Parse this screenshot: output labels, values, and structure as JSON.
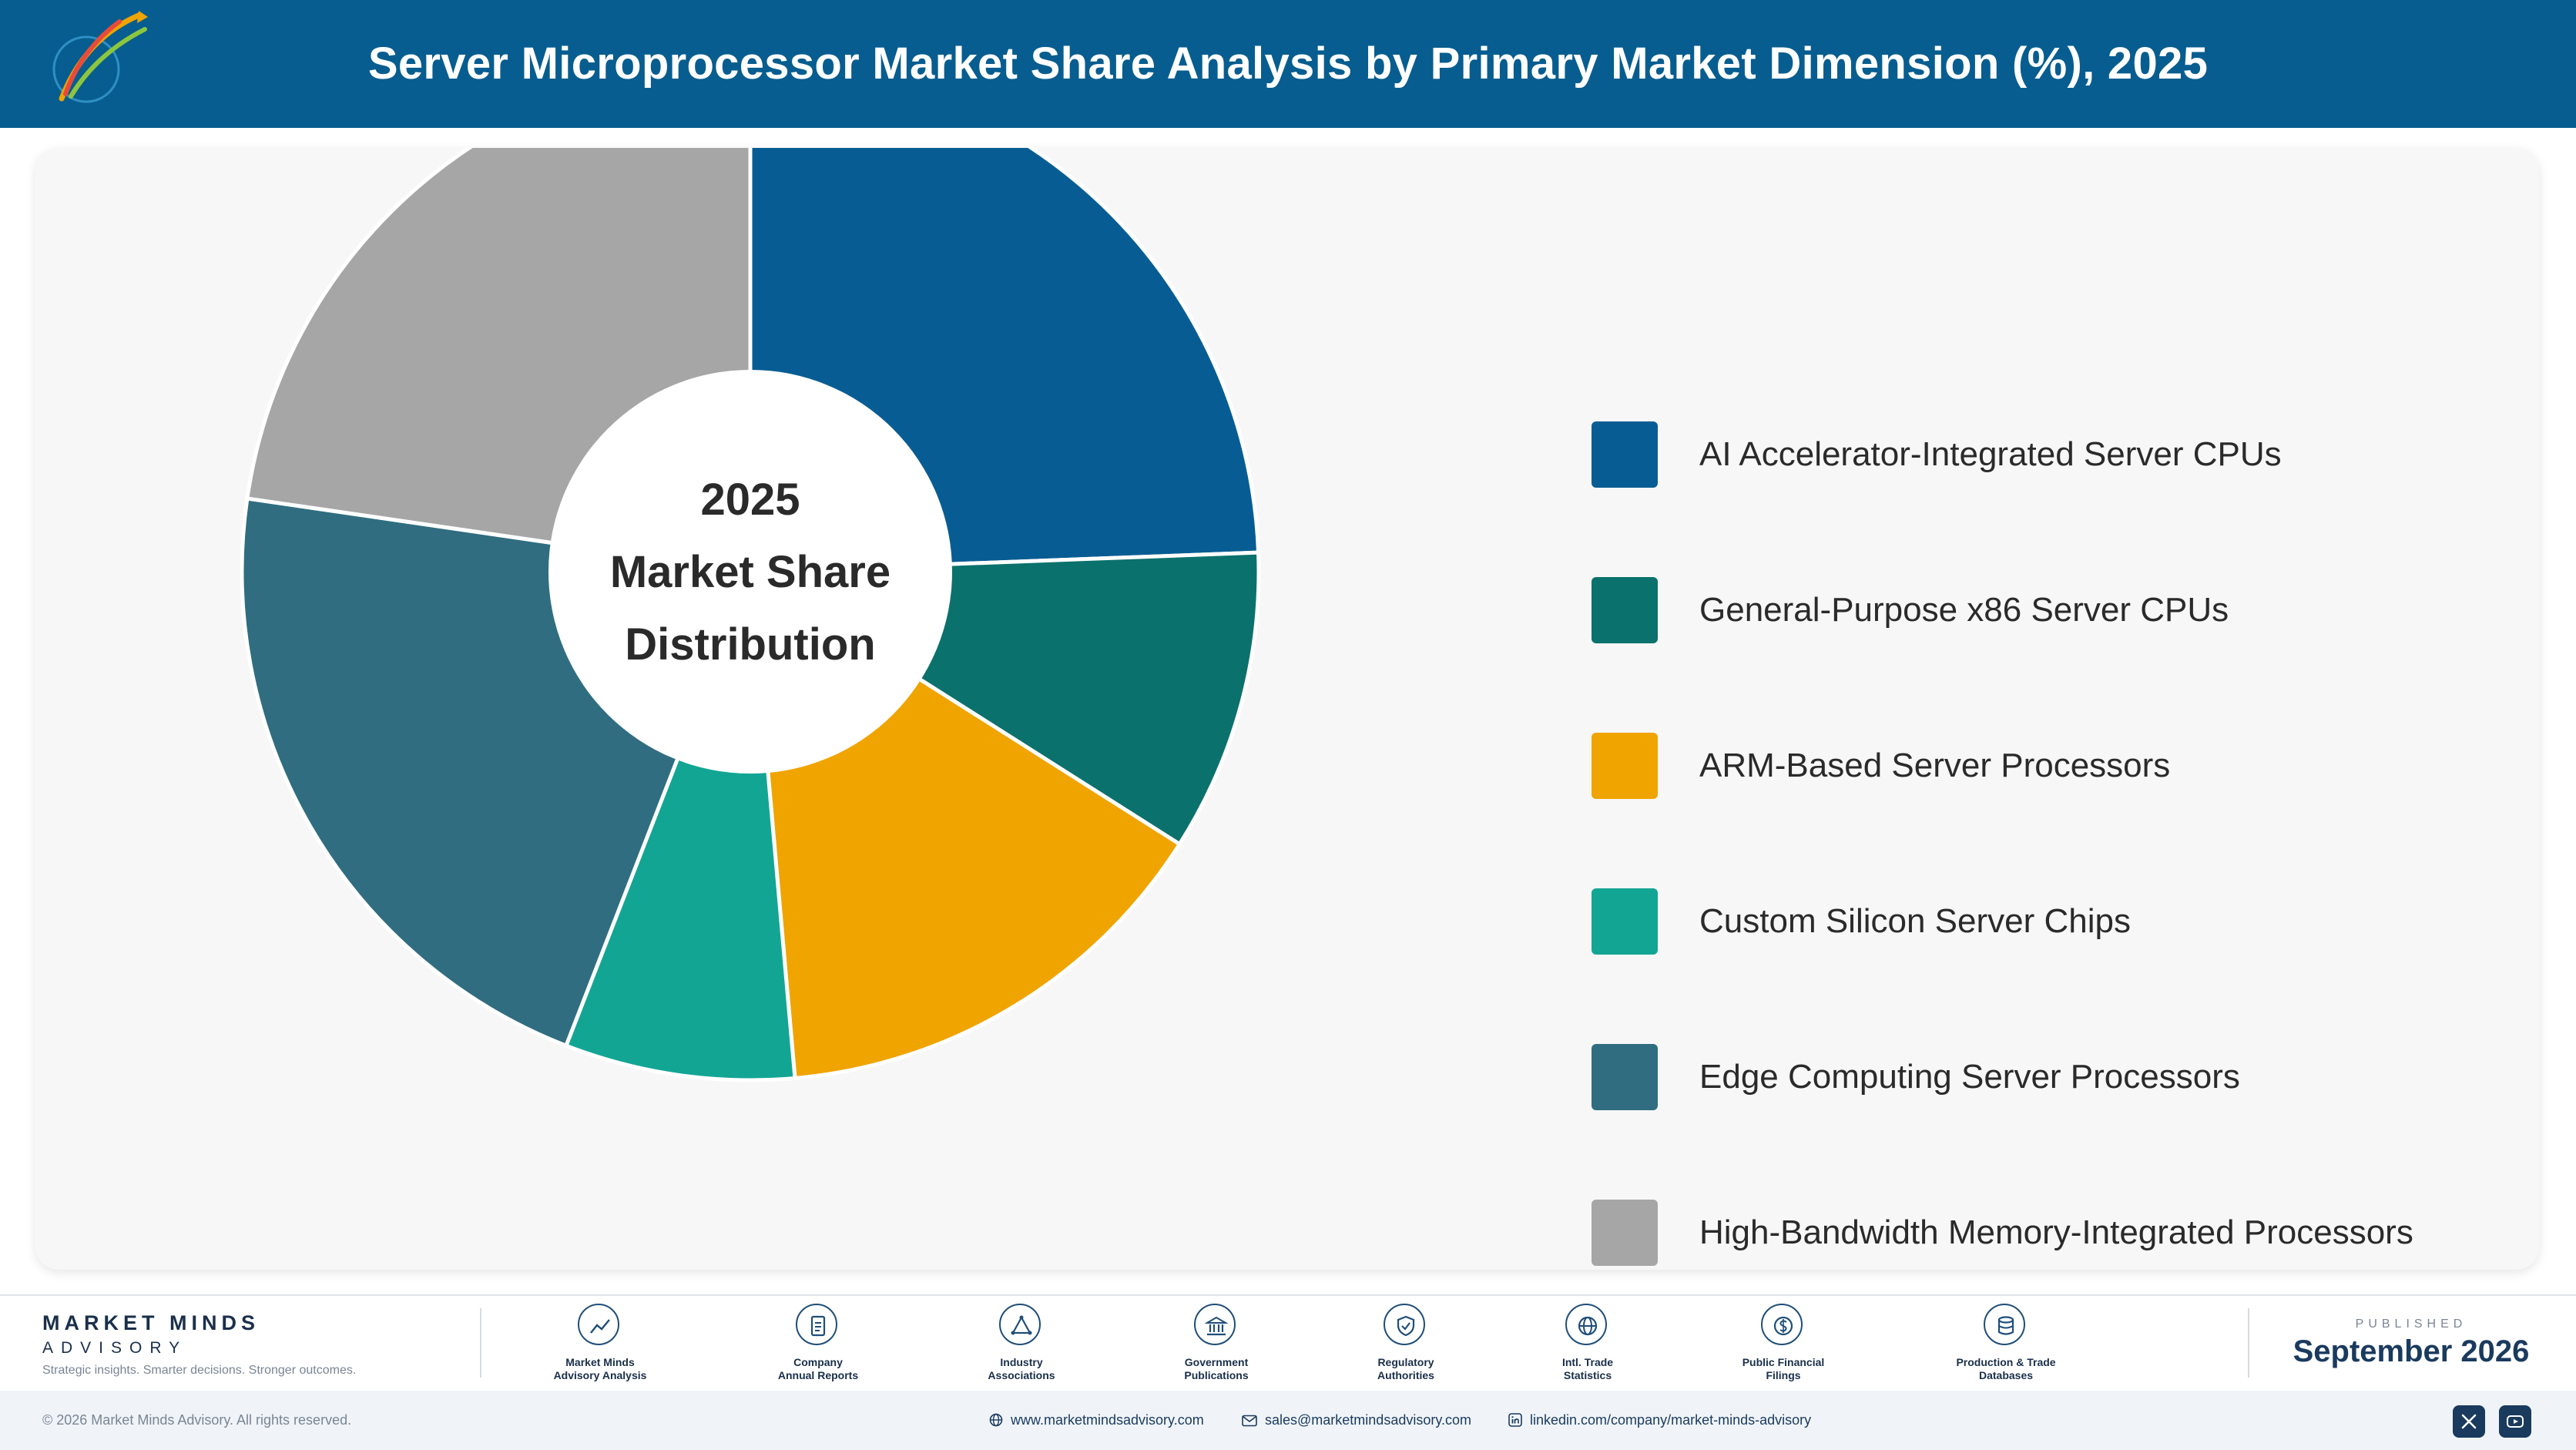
{
  "header": {
    "title": "Server Microprocessor Market Share Analysis by Primary Market Dimension (%), 2025"
  },
  "chart_data": {
    "type": "pie",
    "donut": true,
    "center_label": [
      "2025",
      "Market Share",
      "Distribution"
    ],
    "legend_position": "right",
    "categories": [
      "AI Accelerator-Integrated Server CPUs",
      "General-Purpose x86 Server CPUs",
      "ARM-Based Server Processors",
      "Custom Silicon Server Chips",
      "Edge Computing Server Processors",
      "High-Bandwidth Memory-Integrated Processors"
    ],
    "values": [
      24.4,
      9.6,
      14.6,
      7.3,
      21.4,
      22.7
    ],
    "colors": [
      "#075d93",
      "#0b716c",
      "#f0a400",
      "#13a594",
      "#306d80",
      "#a6a6a6"
    ]
  },
  "footer": {
    "brand_name": "MARKET MINDS",
    "brand_sub": "ADVISORY",
    "brand_tagline": "Strategic insights. Smarter decisions. Stronger outcomes.",
    "sources": [
      {
        "icon": "trend-chart-icon",
        "line1": "Market Minds",
        "line2": "Advisory Analysis"
      },
      {
        "icon": "document-icon",
        "line1": "Company",
        "line2": "Annual Reports"
      },
      {
        "icon": "network-icon",
        "line1": "Industry",
        "line2": "Associations"
      },
      {
        "icon": "government-building-icon",
        "line1": "Government",
        "line2": "Publications"
      },
      {
        "icon": "shield-check-icon",
        "line1": "Regulatory",
        "line2": "Authorities"
      },
      {
        "icon": "globe-icon",
        "line1": "Intl. Trade",
        "line2": "Statistics"
      },
      {
        "icon": "dollar-coin-icon",
        "line1": "Public Financial",
        "line2": "Filings"
      },
      {
        "icon": "database-icon",
        "line1": "Production & Trade",
        "line2": "Databases"
      }
    ],
    "published_label": "PUBLISHED",
    "published_date": "September 2026"
  },
  "bottom_bar": {
    "copyright": "© 2026 Market Minds Advisory. All rights reserved.",
    "website": "www.marketmindsadvisory.com",
    "email": "sales@marketmindsadvisory.com",
    "linkedin": "linkedin.com/company/market-minds-advisory"
  }
}
